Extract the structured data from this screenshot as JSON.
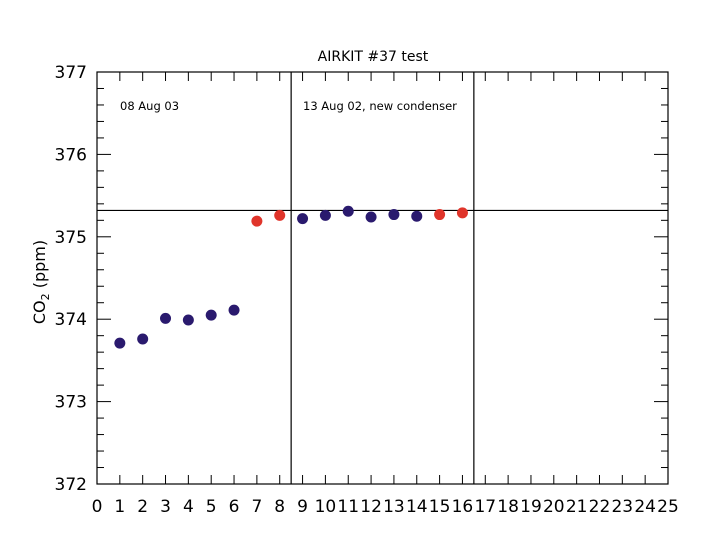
{
  "chart_data": {
    "type": "scatter",
    "title": "AIRKIT #37 test",
    "xlabel": "",
    "ylabel": {
      "main": "CO",
      "sub": "2",
      "unit": " (ppm)"
    },
    "xlim": [
      0,
      25
    ],
    "ylim": [
      372,
      377
    ],
    "x_ticks": [
      0,
      1,
      2,
      3,
      4,
      5,
      6,
      7,
      8,
      9,
      10,
      11,
      12,
      13,
      14,
      15,
      16,
      17,
      18,
      19,
      20,
      21,
      22,
      23,
      24,
      25
    ],
    "y_ticks": [
      372,
      373,
      374,
      375,
      376,
      377
    ],
    "grid": false,
    "annotations": [
      "08 Aug 03",
      "13 Aug 02, new condenser"
    ],
    "reference_lines": {
      "vertical_x": [
        8.5,
        16.5
      ],
      "horizontal_y": 375.32
    },
    "series": [
      {
        "color": "#2a1a6e",
        "points": [
          [
            1,
            373.71
          ],
          [
            2,
            373.76
          ],
          [
            3,
            374.01
          ],
          [
            4,
            373.99
          ],
          [
            5,
            374.05
          ],
          [
            6,
            374.11
          ],
          [
            9,
            375.22
          ],
          [
            10,
            375.26
          ],
          [
            11,
            375.31
          ],
          [
            12,
            375.24
          ],
          [
            13,
            375.27
          ],
          [
            14,
            375.25
          ]
        ]
      },
      {
        "color": "#e0352b",
        "points": [
          [
            7,
            375.19
          ],
          [
            8,
            375.26
          ],
          [
            15,
            375.27
          ],
          [
            16,
            375.29
          ]
        ]
      }
    ]
  }
}
